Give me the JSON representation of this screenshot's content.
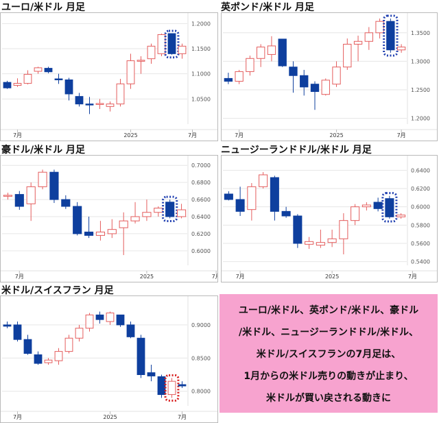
{
  "chart_data": [
    {
      "type": "candlestick",
      "title": "ユーロ/米ドル 月足",
      "yticks": [
        "1.2000",
        "1.1500",
        "1.1000",
        "1.0500"
      ],
      "ytick_values": [
        1.2,
        1.15,
        1.1,
        1.05
      ],
      "ylim": [
        1.0,
        1.21
      ],
      "xticks": [
        "7月",
        "2025",
        "7月"
      ],
      "xtick_index": [
        1,
        12,
        18
      ],
      "candles": [
        {
          "o": 1.083,
          "h": 1.086,
          "l": 1.07,
          "c": 1.072
        },
        {
          "o": 1.077,
          "h": 1.091,
          "l": 1.074,
          "c": 1.081
        },
        {
          "o": 1.081,
          "h": 1.107,
          "l": 1.079,
          "c": 1.099
        },
        {
          "o": 1.105,
          "h": 1.114,
          "l": 1.1,
          "c": 1.112
        },
        {
          "o": 1.111,
          "h": 1.114,
          "l": 1.101,
          "c": 1.104
        },
        {
          "o": 1.09,
          "h": 1.1,
          "l": 1.08,
          "c": 1.088
        },
        {
          "o": 1.088,
          "h": 1.092,
          "l": 1.047,
          "c": 1.06
        },
        {
          "o": 1.055,
          "h": 1.062,
          "l": 1.035,
          "c": 1.04
        },
        {
          "o": 1.04,
          "h": 1.054,
          "l": 1.02,
          "c": 1.039
        },
        {
          "o": 1.04,
          "h": 1.05,
          "l": 1.03,
          "c": 1.041
        },
        {
          "o": 1.035,
          "h": 1.045,
          "l": 1.025,
          "c": 1.04
        },
        {
          "o": 1.04,
          "h": 1.09,
          "l": 1.035,
          "c": 1.08
        },
        {
          "o": 1.08,
          "h": 1.14,
          "l": 1.07,
          "c": 1.126
        },
        {
          "o": 1.126,
          "h": 1.135,
          "l": 1.1,
          "c": 1.127
        },
        {
          "o": 1.13,
          "h": 1.16,
          "l": 1.12,
          "c": 1.155
        },
        {
          "o": 1.14,
          "h": 1.18,
          "l": 1.135,
          "c": 1.178
        },
        {
          "o": 1.18,
          "h": 1.18,
          "l": 1.138,
          "c": 1.14
        },
        {
          "o": 1.14,
          "h": 1.16,
          "l": 1.13,
          "c": 1.155
        }
      ],
      "highlight_index": 16,
      "highlight_color": "#1f3fb0"
    },
    {
      "type": "candlestick",
      "title": "英ポンド/米ドル 月足",
      "yticks": [
        "1.3500",
        "1.3000",
        "1.2500",
        "1.2000"
      ],
      "ytick_values": [
        1.35,
        1.3,
        1.25,
        1.2
      ],
      "ylim": [
        1.19,
        1.375
      ],
      "xticks": [
        "7月",
        "2025",
        "7月"
      ],
      "xtick_index": [
        1,
        10,
        16
      ],
      "candles": [
        {
          "o": 1.27,
          "h": 1.28,
          "l": 1.26,
          "c": 1.265
        },
        {
          "o": 1.265,
          "h": 1.285,
          "l": 1.26,
          "c": 1.282
        },
        {
          "o": 1.282,
          "h": 1.31,
          "l": 1.275,
          "c": 1.305
        },
        {
          "o": 1.305,
          "h": 1.33,
          "l": 1.29,
          "c": 1.325
        },
        {
          "o": 1.312,
          "h": 1.344,
          "l": 1.3,
          "c": 1.327
        },
        {
          "o": 1.339,
          "h": 1.339,
          "l": 1.29,
          "c": 1.292
        },
        {
          "o": 1.29,
          "h": 1.3,
          "l": 1.245,
          "c": 1.275
        },
        {
          "o": 1.275,
          "h": 1.285,
          "l": 1.24,
          "c": 1.255
        },
        {
          "o": 1.26,
          "h": 1.265,
          "l": 1.215,
          "c": 1.247
        },
        {
          "o": 1.242,
          "h": 1.27,
          "l": 1.24,
          "c": 1.267
        },
        {
          "o": 1.26,
          "h": 1.3,
          "l": 1.255,
          "c": 1.29
        },
        {
          "o": 1.29,
          "h": 1.34,
          "l": 1.285,
          "c": 1.33
        },
        {
          "o": 1.33,
          "h": 1.345,
          "l": 1.3,
          "c": 1.335
        },
        {
          "o": 1.335,
          "h": 1.36,
          "l": 1.32,
          "c": 1.35
        },
        {
          "o": 1.35,
          "h": 1.375,
          "l": 1.34,
          "c": 1.37
        },
        {
          "o": 1.37,
          "h": 1.375,
          "l": 1.315,
          "c": 1.32
        },
        {
          "o": 1.32,
          "h": 1.33,
          "l": 1.315,
          "c": 1.325
        }
      ],
      "highlight_index": 15,
      "highlight_color": "#1f3fb0"
    },
    {
      "type": "candlestick",
      "title": "豪ドル/米ドル 月足",
      "yticks": [
        "0.7000",
        "0.6800",
        "0.6600",
        "0.6400",
        "0.6200",
        "0.6000"
      ],
      "ytick_values": [
        0.7,
        0.68,
        0.66,
        0.64,
        0.62,
        0.6
      ],
      "ylim": [
        0.583,
        0.705
      ],
      "xticks": [
        "7月",
        "2025",
        "7月"
      ],
      "xtick_index": [
        1,
        12,
        18
      ],
      "candles": [
        {
          "o": 0.665,
          "h": 0.668,
          "l": 0.66,
          "c": 0.665
        },
        {
          "o": 0.666,
          "h": 0.67,
          "l": 0.648,
          "c": 0.652
        },
        {
          "o": 0.655,
          "h": 0.68,
          "l": 0.635,
          "c": 0.675
        },
        {
          "o": 0.675,
          "h": 0.695,
          "l": 0.672,
          "c": 0.692
        },
        {
          "o": 0.692,
          "h": 0.695,
          "l": 0.656,
          "c": 0.66
        },
        {
          "o": 0.66,
          "h": 0.665,
          "l": 0.649,
          "c": 0.652
        },
        {
          "o": 0.652,
          "h": 0.657,
          "l": 0.618,
          "c": 0.62
        },
        {
          "o": 0.622,
          "h": 0.64,
          "l": 0.615,
          "c": 0.618
        },
        {
          "o": 0.618,
          "h": 0.635,
          "l": 0.612,
          "c": 0.622
        },
        {
          "o": 0.62,
          "h": 0.637,
          "l": 0.615,
          "c": 0.625
        },
        {
          "o": 0.627,
          "h": 0.645,
          "l": 0.595,
          "c": 0.635
        },
        {
          "o": 0.635,
          "h": 0.657,
          "l": 0.632,
          "c": 0.64
        },
        {
          "o": 0.64,
          "h": 0.66,
          "l": 0.635,
          "c": 0.645
        },
        {
          "o": 0.645,
          "h": 0.652,
          "l": 0.64,
          "c": 0.65
        },
        {
          "o": 0.657,
          "h": 0.66,
          "l": 0.638,
          "c": 0.64
        },
        {
          "o": 0.64,
          "h": 0.655,
          "l": 0.638,
          "c": 0.648
        }
      ],
      "highlight_index": 14,
      "highlight_color": "#1f3fb0"
    },
    {
      "type": "candlestick",
      "title": "ニュージーランドドル/米ドル 月足",
      "yticks": [
        "0.6400",
        "0.6200",
        "0.6000",
        "0.5800",
        "0.5600",
        "0.5400"
      ],
      "ytick_values": [
        0.64,
        0.62,
        0.6,
        0.58,
        0.56,
        0.54
      ],
      "ylim": [
        0.536,
        0.65
      ],
      "xticks": [
        "7月",
        "2025",
        "7月"
      ],
      "xtick_index": [
        1,
        9,
        16
      ],
      "candles": [
        {
          "o": 0.614,
          "h": 0.617,
          "l": 0.607,
          "c": 0.608
        },
        {
          "o": 0.608,
          "h": 0.622,
          "l": 0.59,
          "c": 0.595
        },
        {
          "o": 0.597,
          "h": 0.626,
          "l": 0.585,
          "c": 0.622
        },
        {
          "o": 0.622,
          "h": 0.638,
          "l": 0.62,
          "c": 0.635
        },
        {
          "o": 0.632,
          "h": 0.634,
          "l": 0.585,
          "c": 0.595
        },
        {
          "o": 0.595,
          "h": 0.6,
          "l": 0.588,
          "c": 0.59
        },
        {
          "o": 0.59,
          "h": 0.592,
          "l": 0.555,
          "c": 0.56
        },
        {
          "o": 0.559,
          "h": 0.567,
          "l": 0.554,
          "c": 0.562
        },
        {
          "o": 0.558,
          "h": 0.575,
          "l": 0.555,
          "c": 0.561
        },
        {
          "o": 0.561,
          "h": 0.575,
          "l": 0.556,
          "c": 0.565
        },
        {
          "o": 0.565,
          "h": 0.593,
          "l": 0.548,
          "c": 0.585
        },
        {
          "o": 0.585,
          "h": 0.603,
          "l": 0.58,
          "c": 0.6
        },
        {
          "o": 0.6,
          "h": 0.605,
          "l": 0.596,
          "c": 0.602
        },
        {
          "o": 0.605,
          "h": 0.61,
          "l": 0.595,
          "c": 0.598
        },
        {
          "o": 0.609,
          "h": 0.612,
          "l": 0.587,
          "c": 0.589
        },
        {
          "o": 0.589,
          "h": 0.593,
          "l": 0.587,
          "c": 0.591
        }
      ],
      "highlight_index": 14,
      "highlight_color": "#1f3fb0"
    },
    {
      "type": "candlestick",
      "title": "米ドル/スイスフラン 月足",
      "yticks": [
        "0.9000",
        "0.8500",
        "0.8000"
      ],
      "ytick_values": [
        0.9,
        0.85,
        0.8
      ],
      "ylim": [
        0.778,
        0.935
      ],
      "xticks": [
        "7月",
        "2025",
        "7月"
      ],
      "xtick_index": [
        1,
        10,
        17
      ],
      "candles": [
        {
          "o": 0.9,
          "h": 0.905,
          "l": 0.895,
          "c": 0.898
        },
        {
          "o": 0.9,
          "h": 0.905,
          "l": 0.875,
          "c": 0.878
        },
        {
          "o": 0.878,
          "h": 0.885,
          "l": 0.855,
          "c": 0.857
        },
        {
          "o": 0.855,
          "h": 0.86,
          "l": 0.84,
          "c": 0.842
        },
        {
          "o": 0.843,
          "h": 0.85,
          "l": 0.84,
          "c": 0.847
        },
        {
          "o": 0.846,
          "h": 0.865,
          "l": 0.84,
          "c": 0.86
        },
        {
          "o": 0.86,
          "h": 0.885,
          "l": 0.857,
          "c": 0.88
        },
        {
          "o": 0.88,
          "h": 0.9,
          "l": 0.875,
          "c": 0.895
        },
        {
          "o": 0.895,
          "h": 0.918,
          "l": 0.89,
          "c": 0.915
        },
        {
          "o": 0.915,
          "h": 0.92,
          "l": 0.902,
          "c": 0.908
        },
        {
          "o": 0.905,
          "h": 0.92,
          "l": 0.9,
          "c": 0.918
        },
        {
          "o": 0.915,
          "h": 0.915,
          "l": 0.897,
          "c": 0.9
        },
        {
          "o": 0.9,
          "h": 0.905,
          "l": 0.88,
          "c": 0.882
        },
        {
          "o": 0.88,
          "h": 0.885,
          "l": 0.82,
          "c": 0.825
        },
        {
          "o": 0.828,
          "h": 0.84,
          "l": 0.815,
          "c": 0.823
        },
        {
          "o": 0.822,
          "h": 0.825,
          "l": 0.79,
          "c": 0.795
        },
        {
          "o": 0.795,
          "h": 0.82,
          "l": 0.79,
          "c": 0.815
        },
        {
          "o": 0.81,
          "h": 0.815,
          "l": 0.805,
          "c": 0.808
        }
      ],
      "highlight_index": 16,
      "highlight_color": "#d81e1e"
    }
  ],
  "colors": {
    "up": "#e45c5c",
    "down": "#0e3f9e"
  },
  "note": {
    "lines": [
      "ユーロ/米ドル、英ポンド/米ドル、豪ドル",
      "/米ドル、ニュージーランドドル/米ドル、",
      "米ドル/スイスフランの7月足は、",
      "1月からの米ドル売りの動きが止まり、",
      "米ドルが買い戻される動きに"
    ]
  }
}
